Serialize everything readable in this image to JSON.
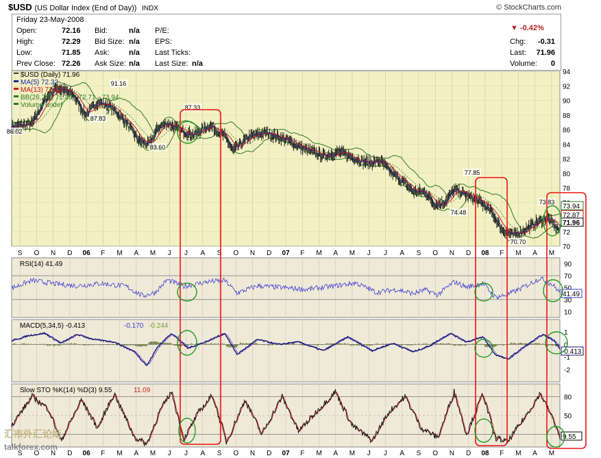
{
  "header": {
    "symbol": "$USD",
    "name": "(US Dollar Index (End of Day))",
    "exchange": "INDX",
    "brand": "© StockCharts.com"
  },
  "quote": {
    "date": "Friday   23-May-2008",
    "open_label": "Open:",
    "open": "72.16",
    "high_label": "High:",
    "high": "72.29",
    "low_label": "Low:",
    "low": "71.85",
    "prevclose_label": "Prev Close:",
    "prevclose": "72.26",
    "bid_label": "Bid:",
    "bid": "n/a",
    "bidsize_label": "Bid Size:",
    "bidsize": "n/a",
    "ask_label": "Ask:",
    "ask": "n/a",
    "asksize_label": "Ask Size:",
    "asksize": "n/a",
    "pe_label": "P/E:",
    "eps_label": "EPS:",
    "lastticks_label": "Last Ticks:",
    "lastsize_label": "Last Size:",
    "lastsize": "n/a",
    "pct_change": "-0.42%",
    "chg_label": "Chg:",
    "chg": "-0.31",
    "last_label": "Last:",
    "last": "71.96",
    "volume_label": "Volume:",
    "volume": "0"
  },
  "watermark": {
    "cn": "汇市外汇论坛",
    "site": "talkforex.com"
  },
  "colors": {
    "price_bg": "#f3f1c3",
    "ind_bg": "#efe9d8",
    "ma5": "#1a2a9c",
    "ma13": "#cc1111",
    "bb": "#2a7a22",
    "rsi": "#3a3ad0",
    "macd": "#141470",
    "hist": "#6b7a3a",
    "stoch_k": "#111111",
    "stoch_d": "#cc2222",
    "highlight": "#ee1111",
    "circle": "#229922"
  },
  "chart_data": [
    {
      "type": "line",
      "panel": "price",
      "legend": [
        "$USD (Daily) 71.96",
        "MA(5) 72.32",
        "MA(13) 72.87",
        "BB(26,2.0) 71.48 - 72.71 - 73.94",
        "Volume undef"
      ],
      "x_ticks": [
        "S",
        "O",
        "N",
        "D",
        "06",
        "F",
        "M",
        "A",
        "M",
        "J",
        "J",
        "A",
        "S",
        "O",
        "N",
        "D",
        "07",
        "F",
        "M",
        "A",
        "M",
        "J",
        "J",
        "A",
        "S",
        "O",
        "N",
        "D",
        "08",
        "F",
        "M",
        "A",
        "M"
      ],
      "x_start": "2005-09",
      "x_end": "2008-05-23",
      "ylim": [
        70,
        94
      ],
      "y_ticks": [
        70,
        72,
        74,
        76,
        78,
        80,
        82,
        84,
        86,
        88,
        90,
        92,
        94
      ],
      "annotations": [
        "86.02",
        "91.16",
        "87.83",
        "83.60",
        "87.33",
        "77.85",
        "74.48",
        "70.70",
        "73.83"
      ],
      "right_labels": [
        "73.94",
        "72.87",
        "71.96"
      ],
      "anchors": [
        [
          0,
          86.4
        ],
        [
          12,
          86.6
        ],
        [
          25,
          86.8
        ],
        [
          40,
          90.0
        ],
        [
          55,
          91.8
        ],
        [
          75,
          90.8
        ],
        [
          90,
          88.0
        ],
        [
          105,
          89.8
        ],
        [
          120,
          89.2
        ],
        [
          140,
          87.0
        ],
        [
          155,
          84.5
        ],
        [
          168,
          83.9
        ],
        [
          178,
          86.2
        ],
        [
          190,
          86.9
        ],
        [
          205,
          85.9
        ],
        [
          222,
          85.3
        ],
        [
          242,
          86.6
        ],
        [
          260,
          85.1
        ],
        [
          270,
          83.1
        ],
        [
          290,
          85.0
        ],
        [
          310,
          85.6
        ],
        [
          335,
          84.6
        ],
        [
          358,
          83.3
        ],
        [
          380,
          82.4
        ],
        [
          400,
          82.9
        ],
        [
          420,
          82.0
        ],
        [
          435,
          81.4
        ],
        [
          450,
          81.7
        ],
        [
          462,
          80.2
        ],
        [
          478,
          78.8
        ],
        [
          490,
          77.5
        ],
        [
          505,
          77.4
        ],
        [
          515,
          75.8
        ],
        [
          527,
          75.9
        ],
        [
          540,
          77.7
        ],
        [
          548,
          77.4
        ],
        [
          558,
          76.8
        ],
        [
          570,
          76.2
        ],
        [
          585,
          74.8
        ],
        [
          598,
          72.3
        ],
        [
          612,
          71.5
        ],
        [
          625,
          72.2
        ],
        [
          640,
          73.2
        ],
        [
          654,
          73.9
        ],
        [
          664,
          72.6
        ],
        [
          670,
          72.0
        ]
      ]
    },
    {
      "type": "line",
      "panel": "rsi",
      "legend": [
        "RSI(14) 41.49"
      ],
      "ylim": [
        0,
        100
      ],
      "y_ticks": [
        10,
        30,
        50,
        70,
        90
      ],
      "reference": [
        30,
        70
      ],
      "right_label": "41.49",
      "anchors": [
        [
          0,
          49
        ],
        [
          25,
          62
        ],
        [
          55,
          56
        ],
        [
          80,
          53
        ],
        [
          110,
          57
        ],
        [
          140,
          52
        ],
        [
          160,
          36
        ],
        [
          175,
          42
        ],
        [
          190,
          63
        ],
        [
          210,
          52
        ],
        [
          240,
          60
        ],
        [
          260,
          62
        ],
        [
          275,
          41
        ],
        [
          300,
          53
        ],
        [
          330,
          50
        ],
        [
          360,
          47
        ],
        [
          390,
          52
        ],
        [
          420,
          58
        ],
        [
          445,
          42
        ],
        [
          470,
          47
        ],
        [
          490,
          40
        ],
        [
          505,
          46
        ],
        [
          520,
          38
        ],
        [
          540,
          60
        ],
        [
          555,
          51
        ],
        [
          575,
          57
        ],
        [
          590,
          34
        ],
        [
          605,
          38
        ],
        [
          625,
          51
        ],
        [
          645,
          66
        ],
        [
          660,
          55
        ],
        [
          670,
          41
        ]
      ]
    },
    {
      "type": "line",
      "panel": "macd",
      "legend": [
        "MACD(5,34,5) -0.413",
        "-0.170",
        "-0.244"
      ],
      "ylim": [
        -3,
        2
      ],
      "y_ticks": [
        -2,
        -1,
        0,
        1
      ],
      "right_label": "-0.413",
      "anchors": [
        [
          0,
          0.3
        ],
        [
          20,
          0.7
        ],
        [
          40,
          0.9
        ],
        [
          60,
          0.1
        ],
        [
          80,
          0.8
        ],
        [
          100,
          0.4
        ],
        [
          125,
          0.2
        ],
        [
          150,
          -0.6
        ],
        [
          165,
          -1.7
        ],
        [
          178,
          -0.2
        ],
        [
          195,
          0.9
        ],
        [
          215,
          -0.3
        ],
        [
          240,
          0.3
        ],
        [
          260,
          0.9
        ],
        [
          275,
          -0.8
        ],
        [
          300,
          0.4
        ],
        [
          325,
          0.0
        ],
        [
          350,
          0.2
        ],
        [
          380,
          -0.5
        ],
        [
          410,
          0.6
        ],
        [
          440,
          -0.5
        ],
        [
          465,
          0.1
        ],
        [
          490,
          -0.6
        ],
        [
          510,
          -0.1
        ],
        [
          535,
          0.9
        ],
        [
          555,
          0.2
        ],
        [
          575,
          0.6
        ],
        [
          590,
          -0.8
        ],
        [
          605,
          -1.2
        ],
        [
          625,
          -0.2
        ],
        [
          648,
          0.8
        ],
        [
          662,
          0.3
        ],
        [
          670,
          -0.4
        ]
      ]
    },
    {
      "type": "line",
      "panel": "stochastic",
      "legend": [
        "Slow STO %K(14) %D(3) 9.55",
        "11.09"
      ],
      "ylim": [
        0,
        100
      ],
      "y_ticks": [
        20,
        50,
        80
      ],
      "reference": [
        20,
        80
      ],
      "right_label": "9.55",
      "anchors": [
        [
          0,
          35
        ],
        [
          25,
          80
        ],
        [
          45,
          60
        ],
        [
          60,
          10
        ],
        [
          85,
          75
        ],
        [
          105,
          30
        ],
        [
          125,
          85
        ],
        [
          150,
          15
        ],
        [
          165,
          5
        ],
        [
          180,
          55
        ],
        [
          195,
          88
        ],
        [
          210,
          12
        ],
        [
          228,
          55
        ],
        [
          245,
          82
        ],
        [
          262,
          8
        ],
        [
          285,
          75
        ],
        [
          305,
          20
        ],
        [
          330,
          80
        ],
        [
          350,
          25
        ],
        [
          375,
          60
        ],
        [
          395,
          88
        ],
        [
          415,
          35
        ],
        [
          440,
          10
        ],
        [
          460,
          55
        ],
        [
          480,
          80
        ],
        [
          500,
          30
        ],
        [
          520,
          15
        ],
        [
          540,
          88
        ],
        [
          555,
          20
        ],
        [
          575,
          85
        ],
        [
          590,
          15
        ],
        [
          605,
          8
        ],
        [
          625,
          45
        ],
        [
          645,
          85
        ],
        [
          662,
          40
        ],
        [
          670,
          10
        ]
      ]
    }
  ]
}
